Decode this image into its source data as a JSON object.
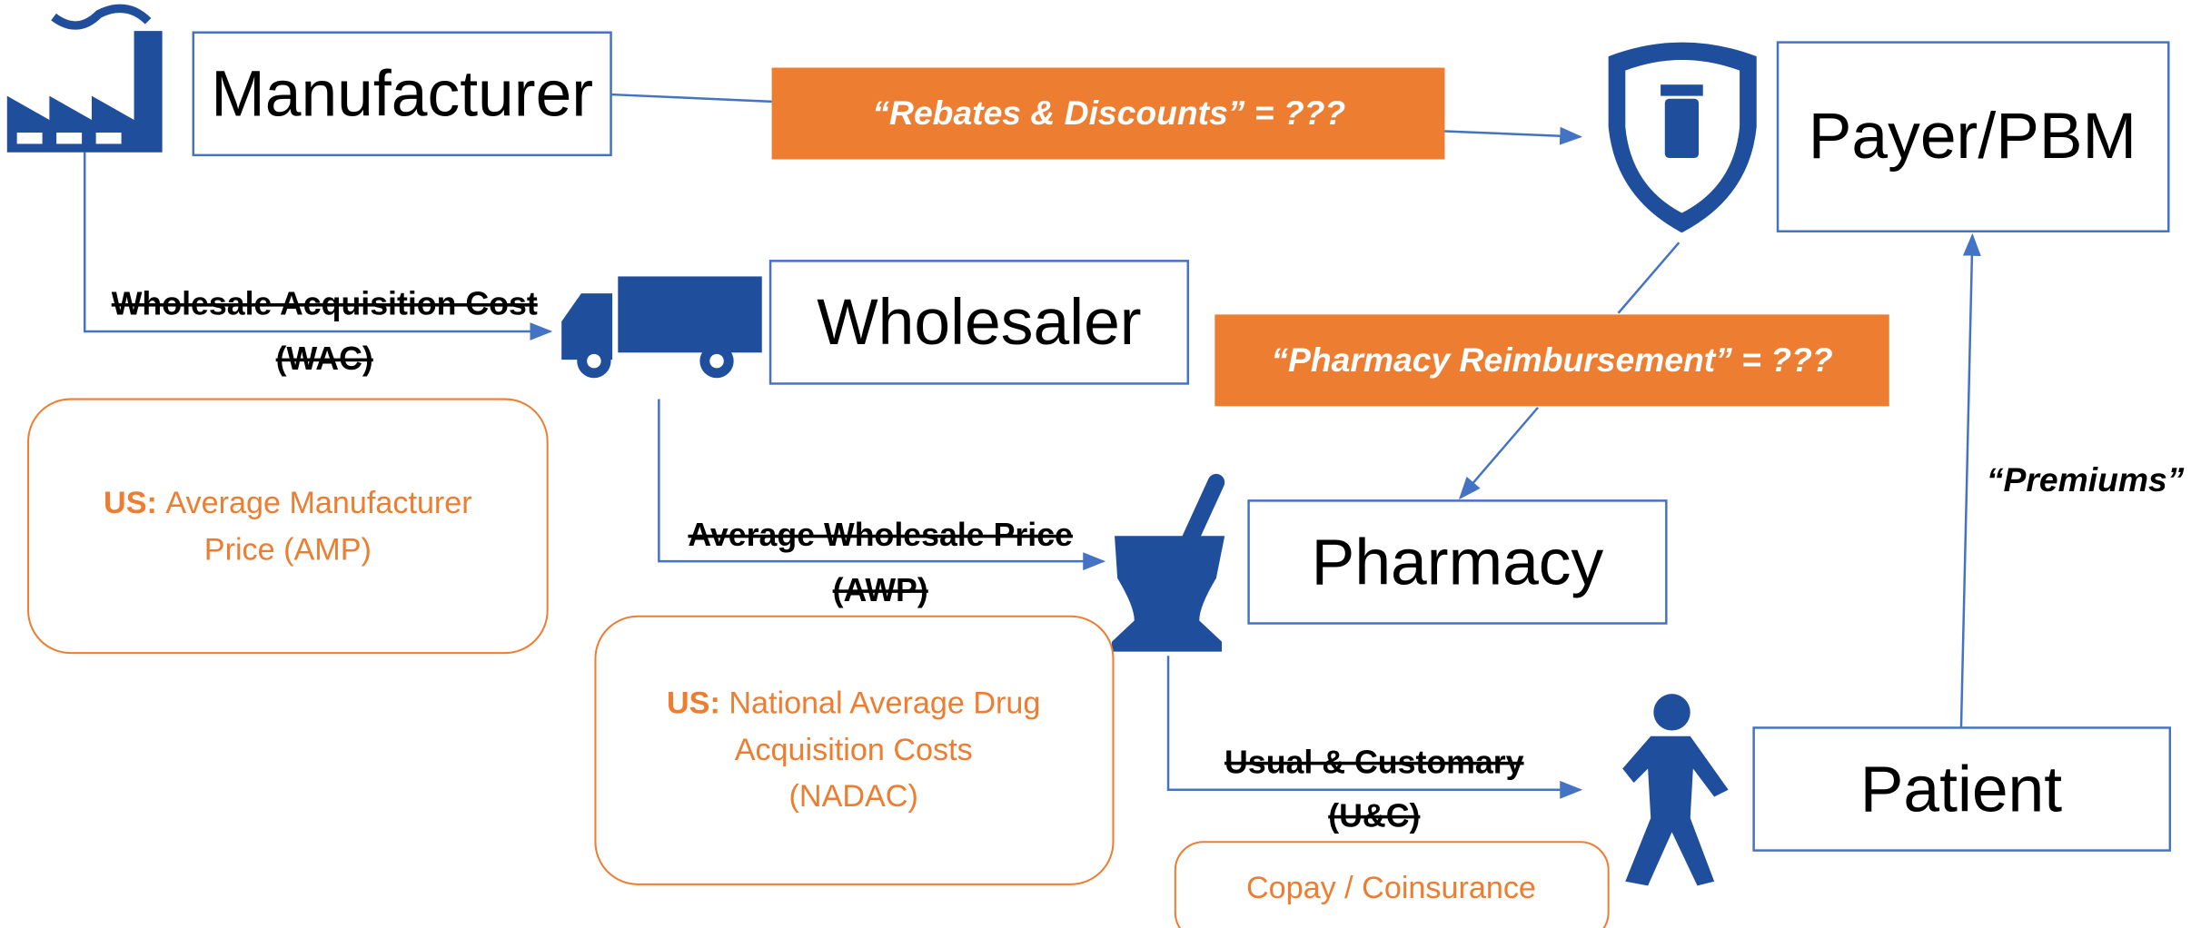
{
  "nodes": [
    {
      "label": "Manufacturer"
    },
    {
      "label": "Wholesaler"
    },
    {
      "label": "Payer/PBM"
    },
    {
      "label": "Pharmacy"
    },
    {
      "label": "Patient"
    }
  ],
  "flows": [
    {
      "label": "“Rebates & Discounts” = ???"
    },
    {
      "label": "“Pharmacy Reimbursement” = ???"
    },
    {
      "label": "“Premiums”"
    }
  ],
  "prices": [
    {
      "lines": [
        "Wholesale Acquisition Cost",
        "(WAC)"
      ]
    },
    {
      "lines": [
        "Average Wholesale Price",
        "(AWP)"
      ]
    },
    {
      "lines": [
        "Usual & Customary",
        "(U&C)"
      ]
    }
  ],
  "notes": [
    {
      "prefix": "US:",
      "lines": [
        "Average Manufacturer",
        "Price (AMP)"
      ]
    },
    {
      "prefix": "US:",
      "lines": [
        "National Average Drug",
        "Acquisition Costs",
        "(NADAC)"
      ]
    },
    {
      "lines": [
        "Copay / Coinsurance"
      ]
    }
  ]
}
